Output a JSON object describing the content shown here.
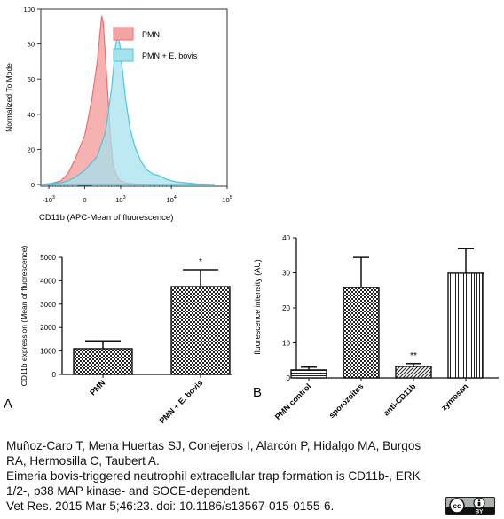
{
  "chart_data": [
    {
      "type": "area",
      "xlabel": "CD11b (APC-Mean of fluorescence)",
      "ylabel": "Normalized To Mode",
      "ylim": [
        0,
        100
      ],
      "yticks": [
        "0",
        "20",
        "40",
        "60",
        "80",
        "100"
      ],
      "xtick_labels": [
        {
          "base": "-10",
          "exp": "3",
          "value": -1000
        },
        {
          "base": "0",
          "exp": "",
          "value": 0
        },
        {
          "base": "10",
          "exp": "3",
          "value": 1000
        },
        {
          "base": "10",
          "exp": "4",
          "value": 10000
        },
        {
          "base": "10",
          "exp": "5",
          "value": 100000
        }
      ],
      "x_scale": "biexponential",
      "legend_position": "top-right",
      "series": [
        {
          "name": "PMN",
          "color": "#ee6f6f",
          "fill": "#f4a3a3",
          "points": [
            [
              -1500,
              0
            ],
            [
              -900,
              0.5
            ],
            [
              -500,
              2
            ],
            [
              -300,
              6
            ],
            [
              -150,
              14
            ],
            [
              0,
              28
            ],
            [
              100,
              48
            ],
            [
              200,
              70
            ],
            [
              260,
              86
            ],
            [
              300,
              96
            ],
            [
              340,
              92
            ],
            [
              400,
              72
            ],
            [
              480,
              48
            ],
            [
              560,
              26
            ],
            [
              650,
              12
            ],
            [
              800,
              5
            ],
            [
              1000,
              2
            ],
            [
              1300,
              0.8
            ],
            [
              2000,
              0.3
            ],
            [
              5000,
              0
            ]
          ]
        },
        {
          "name": "PMN + E. bovis",
          "color": "#4cc6da",
          "fill": "#a6e2ee",
          "points": [
            [
              -1500,
              0
            ],
            [
              -900,
              0.5
            ],
            [
              -500,
              1
            ],
            [
              -300,
              2
            ],
            [
              -150,
              4
            ],
            [
              0,
              8
            ],
            [
              200,
              16
            ],
            [
              400,
              30
            ],
            [
              600,
              55
            ],
            [
              750,
              78
            ],
            [
              850,
              86
            ],
            [
              950,
              80
            ],
            [
              1100,
              65
            ],
            [
              1300,
              48
            ],
            [
              1600,
              32
            ],
            [
              2000,
              22
            ],
            [
              2600,
              14
            ],
            [
              3300,
              9
            ],
            [
              4500,
              6
            ],
            [
              6000,
              5
            ],
            [
              8000,
              3
            ],
            [
              12000,
              1.5
            ],
            [
              20000,
              0.8
            ],
            [
              30000,
              0.3
            ],
            [
              60000,
              0
            ]
          ]
        }
      ]
    },
    {
      "type": "bar",
      "panel_label": "A",
      "categories": [
        "PMN",
        "PMN + E. bovis"
      ],
      "values": [
        1100,
        3750
      ],
      "error": [
        330,
        720
      ],
      "significance": [
        "",
        "*"
      ],
      "ylabel": "CD11b expression (Mean of fluorescence)",
      "ylim": [
        0,
        5000
      ],
      "yticks": [
        "0",
        "1000",
        "2000",
        "3000",
        "4000",
        "5000"
      ]
    },
    {
      "type": "bar",
      "panel_label": "B",
      "categories": [
        "PMN control",
        "sporozoites",
        "anti-CD11b",
        "zymosan"
      ],
      "values": [
        2.3,
        25.8,
        3.3,
        29.9
      ],
      "error": [
        0.8,
        8.6,
        0.8,
        7.0
      ],
      "significance": [
        "",
        "",
        "**",
        ""
      ],
      "patterns": [
        "horizontal",
        "checker",
        "diagonal",
        "vertical"
      ],
      "ylabel": "fluorescence intensity (AU)",
      "ylim": [
        0,
        40
      ],
      "yticks": [
        "0",
        "10",
        "20",
        "30",
        "40"
      ]
    }
  ],
  "citation": {
    "authors_line1": "Muñoz-Caro T, Mena Huertas SJ, Conejeros I, Alarcón P, Hidalgo MA, Burgos",
    "authors_line2": "RA, Hermosilla C, Taubert A.",
    "title_line1": "Eimeria bovis-triggered neutrophil extracellular trap formation is CD11b-, ERK",
    "title_line2": "1/2-, p38 MAP kinase- and SOCE-dependent.",
    "ref_line": "Vet Res. 2015  Mar 5;46:23. doi: 10.1186/s13567-015-0155-6."
  },
  "license_badge": {
    "icons": [
      "cc-icon",
      "attribution-icon"
    ],
    "text": "BY"
  }
}
